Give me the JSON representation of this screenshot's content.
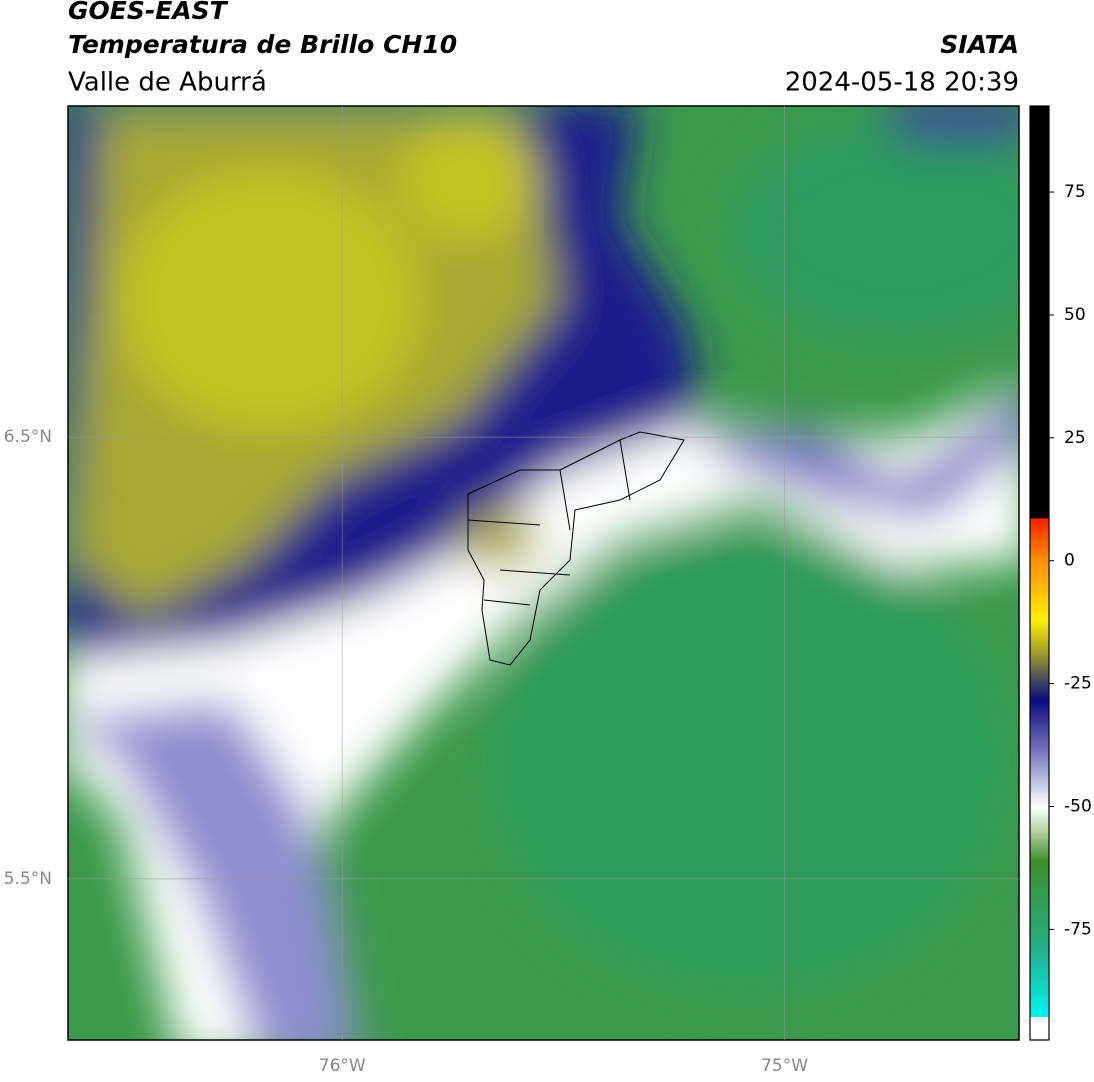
{
  "header": {
    "title": "GOES-EAST",
    "subtitle": "Temperatura de Brillo CH10",
    "region": "Valle de Aburrá",
    "source": "SIATA",
    "datetime": "2024-05-18 20:39"
  },
  "map": {
    "xlim": [
      -76.62,
      -74.47
    ],
    "ylim": [
      5.135,
      7.25
    ],
    "xticks": [
      {
        "value": -76,
        "label": "76°W"
      },
      {
        "value": -75,
        "label": "75°W"
      }
    ],
    "yticks": [
      {
        "value": 6.5,
        "label": "6.5°N"
      },
      {
        "value": 5.5,
        "label": "5.5°N"
      }
    ],
    "grid": true
  },
  "colorbar": {
    "lim": [
      -97.5,
      92.5
    ],
    "ticks": [
      75,
      50,
      25,
      0,
      -25,
      -50,
      -75
    ]
  }
}
